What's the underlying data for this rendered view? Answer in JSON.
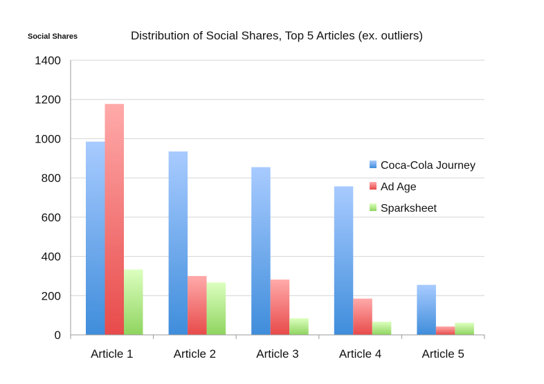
{
  "chart_data": {
    "type": "bar",
    "title": "Distribution of Social Shares, Top 5 Articles (ex. outliers)",
    "ylabel": "Social Shares",
    "xlabel": "",
    "categories": [
      "Article 1",
      "Article 2",
      "Article 3",
      "Article 4",
      "Article 5"
    ],
    "ylim": [
      0,
      1400
    ],
    "yticks": [
      0,
      200,
      400,
      600,
      800,
      1000,
      1200,
      1400
    ],
    "grid": true,
    "legend_position": "right",
    "series": [
      {
        "name": "Coca-Cola Journey",
        "values": [
          985,
          935,
          855,
          757,
          255
        ],
        "color_light": "#a8cbff",
        "color_dark": "#3f8ddb"
      },
      {
        "name": "Ad Age",
        "values": [
          1177,
          300,
          282,
          185,
          43
        ],
        "color_light": "#ffaaaa",
        "color_dark": "#e84a4a"
      },
      {
        "name": "Sparksheet",
        "values": [
          333,
          267,
          85,
          67,
          62
        ],
        "color_light": "#dcffbf",
        "color_dark": "#8fd45f"
      }
    ]
  }
}
